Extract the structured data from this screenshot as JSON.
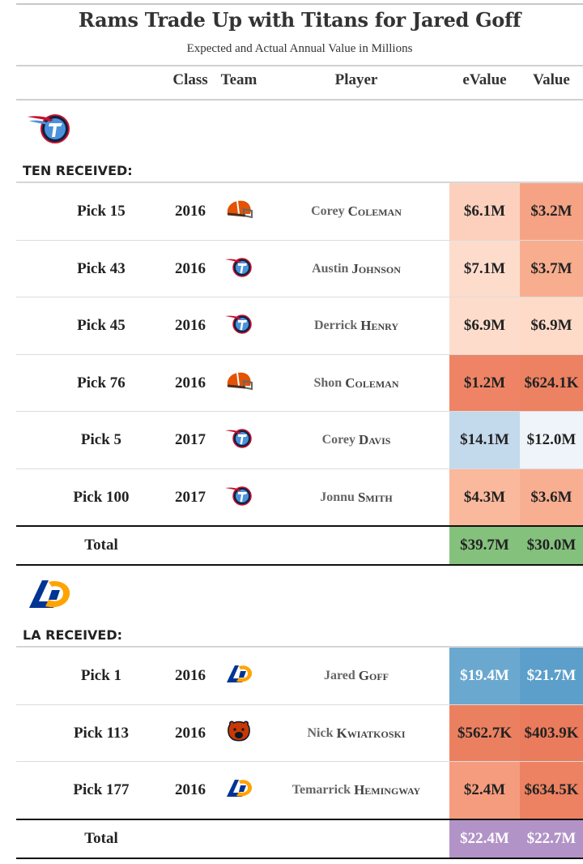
{
  "title": "Rams Trade Up with Titans for Jared Goff",
  "subtitle": "Expected and Actual Annual Value in Millions",
  "columns": {
    "class": "Class",
    "team": "Team",
    "player": "Player",
    "evalue": "eValue",
    "value": "Value"
  },
  "ten": {
    "label": "TEN RECEIVED:",
    "logo": "titans-logo-icon",
    "rows": [
      {
        "pick": "Pick 15",
        "class": "2016",
        "team": "browns-helmet-icon",
        "first": "Corey",
        "last": "Coleman",
        "evalue": "$6.1M",
        "value": "$3.2M",
        "ecolor": "#fdd0bd",
        "vcolor": "#f6a385"
      },
      {
        "pick": "Pick 43",
        "class": "2016",
        "team": "titans-logo-icon",
        "first": "Austin",
        "last": "Johnson",
        "evalue": "$7.1M",
        "value": "$3.7M",
        "ecolor": "#fedccc",
        "vcolor": "#f8ad8f"
      },
      {
        "pick": "Pick 45",
        "class": "2016",
        "team": "titans-logo-icon",
        "first": "Derrick",
        "last": "Henry",
        "evalue": "$6.9M",
        "value": "$6.9M",
        "ecolor": "#fedccc",
        "vcolor": "#fedac9"
      },
      {
        "pick": "Pick 76",
        "class": "2016",
        "team": "browns-helmet-icon",
        "first": "Shon",
        "last": "Coleman",
        "evalue": "$1.2M",
        "value": "$624.1K",
        "ecolor": "#ee8465",
        "vcolor": "#ec8262"
      },
      {
        "pick": "Pick 5",
        "class": "2017",
        "team": "titans-logo-icon",
        "first": "Corey",
        "last": "Davis",
        "evalue": "$14.1M",
        "value": "$12.0M",
        "ecolor": "#c3d9ec",
        "vcolor": "#eef4f9"
      },
      {
        "pick": "Pick 100",
        "class": "2017",
        "team": "titans-logo-icon",
        "first": "Jonnu",
        "last": "Smith",
        "evalue": "$4.3M",
        "value": "$3.6M",
        "ecolor": "#fab89c",
        "vcolor": "#f8ae91"
      }
    ],
    "total": {
      "label": "Total",
      "evalue": "$39.7M",
      "value": "$30.0M",
      "color": "#84c17d"
    }
  },
  "la": {
    "label": "LA RECEIVED:",
    "logo": "rams-logo-icon",
    "rows": [
      {
        "pick": "Pick 1",
        "class": "2016",
        "team": "rams-logo-icon",
        "first": "Jared",
        "last": "Goff",
        "evalue": "$19.4M",
        "value": "$21.7M",
        "ecolor": "#6aa8d0",
        "vcolor": "#5c9fcb"
      },
      {
        "pick": "Pick 113",
        "class": "2016",
        "team": "bears-logo-icon",
        "first": "Nick",
        "last": "Kwiatkoski",
        "evalue": "$562.7K",
        "value": "$403.9K",
        "ecolor": "#eb8060",
        "vcolor": "#ea7b5c"
      },
      {
        "pick": "Pick 177",
        "class": "2016",
        "team": "rams-logo-icon",
        "first": "Temarrick",
        "last": "Hemingway",
        "evalue": "$2.4M",
        "value": "$634.5K",
        "ecolor": "#f59c7e",
        "vcolor": "#ec8262"
      }
    ],
    "total": {
      "label": "Total",
      "evalue": "$22.4M",
      "value": "$22.7M",
      "color": "#b293c7"
    }
  }
}
